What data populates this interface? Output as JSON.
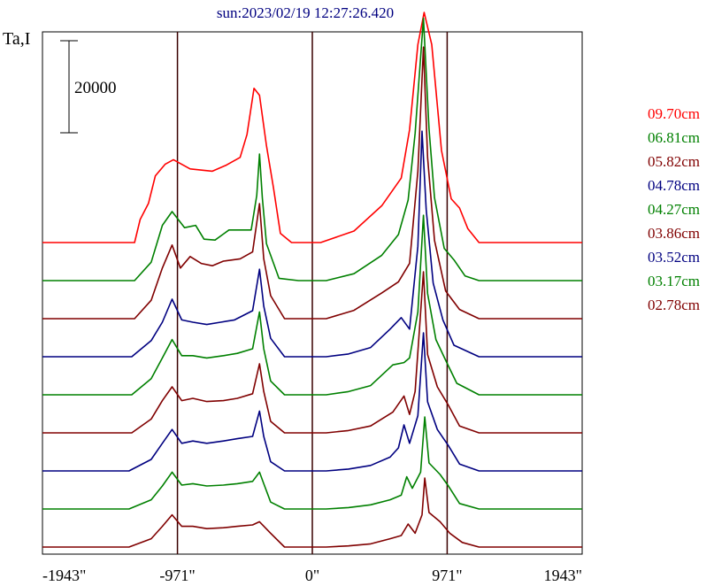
{
  "chart_data": {
    "type": "line",
    "title": "sun:2023/02/19 12:27:26.420",
    "ylabel": "Ta,I",
    "scale_bar_label": "20000",
    "xlim": [
      -1943,
      1943
    ],
    "x_ticks": [
      -1943,
      -971,
      0,
      971,
      1943
    ],
    "x_tick_labels": [
      "-1943\"",
      "-971\"",
      "0\"",
      "971\"",
      "1943\""
    ],
    "vertical_lines": [
      -971,
      0,
      971
    ],
    "series": [
      {
        "name": "09.70cm",
        "color": "#ff0000",
        "peaks": [
          [
            -1820,
            0
          ],
          [
            -1280,
            0
          ],
          [
            -1240,
            5000
          ],
          [
            -1180,
            8500
          ],
          [
            -1130,
            14500
          ],
          [
            -1060,
            17000
          ],
          [
            -1000,
            18000
          ],
          [
            -880,
            16000
          ],
          [
            -720,
            15500
          ],
          [
            -620,
            16800
          ],
          [
            -520,
            18500
          ],
          [
            -470,
            23500
          ],
          [
            -420,
            33500
          ],
          [
            -380,
            32000
          ],
          [
            -330,
            21000
          ],
          [
            -280,
            12000
          ],
          [
            -230,
            2000
          ],
          [
            -150,
            0
          ],
          [
            60,
            0
          ],
          [
            300,
            2500
          ],
          [
            500,
            8000
          ],
          [
            640,
            14000
          ],
          [
            700,
            24500
          ],
          [
            760,
            43000
          ],
          [
            805,
            50000
          ],
          [
            860,
            43000
          ],
          [
            930,
            20000
          ],
          [
            1000,
            9500
          ],
          [
            1060,
            7500
          ],
          [
            1120,
            3000
          ],
          [
            1200,
            0
          ],
          [
            1943,
            0
          ]
        ]
      },
      {
        "name": "06.81cm",
        "color": "#008000",
        "peaks": [
          [
            -1820,
            0
          ],
          [
            -1280,
            0
          ],
          [
            -1160,
            4000
          ],
          [
            -1080,
            12000
          ],
          [
            -1010,
            15000
          ],
          [
            -920,
            11500
          ],
          [
            -840,
            12000
          ],
          [
            -780,
            9000
          ],
          [
            -700,
            8800
          ],
          [
            -600,
            11000
          ],
          [
            -440,
            11000
          ],
          [
            -400,
            18500
          ],
          [
            -380,
            27500
          ],
          [
            -360,
            18000
          ],
          [
            -330,
            8000
          ],
          [
            -240,
            500
          ],
          [
            -100,
            0
          ],
          [
            100,
            0
          ],
          [
            300,
            1500
          ],
          [
            500,
            5500
          ],
          [
            620,
            10000
          ],
          [
            690,
            17500
          ],
          [
            740,
            32000
          ],
          [
            800,
            57000
          ],
          [
            840,
            33000
          ],
          [
            880,
            18000
          ],
          [
            950,
            7000
          ],
          [
            1020,
            4500
          ],
          [
            1100,
            1000
          ],
          [
            1200,
            0
          ],
          [
            1943,
            0
          ]
        ]
      },
      {
        "name": "05.82cm",
        "color": "#800000",
        "peaks": [
          [
            -1820,
            0
          ],
          [
            -1280,
            0
          ],
          [
            -1160,
            4000
          ],
          [
            -1080,
            11000
          ],
          [
            -1010,
            16000
          ],
          [
            -950,
            11000
          ],
          [
            -880,
            13500
          ],
          [
            -800,
            12000
          ],
          [
            -720,
            11500
          ],
          [
            -640,
            12500
          ],
          [
            -520,
            13000
          ],
          [
            -430,
            14500
          ],
          [
            -380,
            25000
          ],
          [
            -350,
            13000
          ],
          [
            -300,
            5000
          ],
          [
            -200,
            0
          ],
          [
            100,
            0
          ],
          [
            300,
            1800
          ],
          [
            500,
            5600
          ],
          [
            620,
            8000
          ],
          [
            700,
            12000
          ],
          [
            760,
            32000
          ],
          [
            800,
            59000
          ],
          [
            830,
            35000
          ],
          [
            880,
            17000
          ],
          [
            960,
            6000
          ],
          [
            1060,
            2000
          ],
          [
            1200,
            0
          ],
          [
            1943,
            0
          ]
        ]
      },
      {
        "name": "04.78cm",
        "color": "#000080",
        "peaks": [
          [
            -1820,
            0
          ],
          [
            -1300,
            0
          ],
          [
            -1160,
            3500
          ],
          [
            -1080,
            7500
          ],
          [
            -1010,
            12500
          ],
          [
            -940,
            8000
          ],
          [
            -860,
            7500
          ],
          [
            -760,
            7000
          ],
          [
            -660,
            7500
          ],
          [
            -560,
            8000
          ],
          [
            -430,
            10000
          ],
          [
            -380,
            19000
          ],
          [
            -350,
            11000
          ],
          [
            -300,
            4000
          ],
          [
            -200,
            0
          ],
          [
            100,
            0
          ],
          [
            260,
            600
          ],
          [
            420,
            2000
          ],
          [
            560,
            6000
          ],
          [
            640,
            8500
          ],
          [
            700,
            6000
          ],
          [
            760,
            24000
          ],
          [
            790,
            49000
          ],
          [
            820,
            32000
          ],
          [
            870,
            16000
          ],
          [
            940,
            8000
          ],
          [
            1020,
            2500
          ],
          [
            1200,
            0
          ],
          [
            1943,
            0
          ]
        ]
      },
      {
        "name": "04.27cm",
        "color": "#008000",
        "peaks": [
          [
            -1820,
            0
          ],
          [
            -1300,
            0
          ],
          [
            -1160,
            3500
          ],
          [
            -1080,
            8000
          ],
          [
            -1010,
            12000
          ],
          [
            -940,
            8500
          ],
          [
            -860,
            8500
          ],
          [
            -760,
            8000
          ],
          [
            -640,
            8500
          ],
          [
            -540,
            9000
          ],
          [
            -430,
            10000
          ],
          [
            -380,
            18000
          ],
          [
            -350,
            10000
          ],
          [
            -300,
            3000
          ],
          [
            -200,
            0
          ],
          [
            100,
            0
          ],
          [
            260,
            700
          ],
          [
            420,
            2000
          ],
          [
            580,
            6500
          ],
          [
            660,
            7000
          ],
          [
            700,
            8000
          ],
          [
            760,
            18000
          ],
          [
            800,
            39000
          ],
          [
            830,
            22000
          ],
          [
            890,
            12000
          ],
          [
            960,
            7500
          ],
          [
            1040,
            2500
          ],
          [
            1200,
            0
          ],
          [
            1943,
            0
          ]
        ]
      },
      {
        "name": "03.86cm",
        "color": "#800000",
        "peaks": [
          [
            -1820,
            0
          ],
          [
            -1300,
            0
          ],
          [
            -1160,
            3000
          ],
          [
            -1080,
            7000
          ],
          [
            -1010,
            10000
          ],
          [
            -940,
            7000
          ],
          [
            -860,
            7500
          ],
          [
            -760,
            6800
          ],
          [
            -640,
            7000
          ],
          [
            -540,
            7500
          ],
          [
            -430,
            8500
          ],
          [
            -380,
            15000
          ],
          [
            -350,
            9000
          ],
          [
            -300,
            2500
          ],
          [
            -200,
            0
          ],
          [
            100,
            0
          ],
          [
            260,
            500
          ],
          [
            420,
            1500
          ],
          [
            580,
            4500
          ],
          [
            660,
            8000
          ],
          [
            700,
            4000
          ],
          [
            740,
            9000
          ],
          [
            800,
            35000
          ],
          [
            830,
            17000
          ],
          [
            900,
            10000
          ],
          [
            980,
            6000
          ],
          [
            1060,
            1500
          ],
          [
            1200,
            0
          ],
          [
            1943,
            0
          ]
        ]
      },
      {
        "name": "03.52cm",
        "color": "#000080",
        "peaks": [
          [
            -1820,
            0
          ],
          [
            -1320,
            0
          ],
          [
            -1160,
            2500
          ],
          [
            -1080,
            6000
          ],
          [
            -1010,
            9000
          ],
          [
            -940,
            6000
          ],
          [
            -860,
            6500
          ],
          [
            -760,
            6000
          ],
          [
            -640,
            6500
          ],
          [
            -540,
            7000
          ],
          [
            -430,
            7500
          ],
          [
            -380,
            13000
          ],
          [
            -350,
            7500
          ],
          [
            -300,
            2000
          ],
          [
            -200,
            0
          ],
          [
            100,
            0
          ],
          [
            260,
            400
          ],
          [
            420,
            1200
          ],
          [
            560,
            3000
          ],
          [
            620,
            5000
          ],
          [
            660,
            10000
          ],
          [
            700,
            6000
          ],
          [
            760,
            12000
          ],
          [
            800,
            30000
          ],
          [
            830,
            15000
          ],
          [
            900,
            9000
          ],
          [
            980,
            5500
          ],
          [
            1060,
            1500
          ],
          [
            1200,
            0
          ],
          [
            1943,
            0
          ]
        ]
      },
      {
        "name": "03.17cm",
        "color": "#008000",
        "peaks": [
          [
            -1820,
            0
          ],
          [
            -1320,
            0
          ],
          [
            -1160,
            2000
          ],
          [
            -1080,
            5000
          ],
          [
            -1010,
            8000
          ],
          [
            -940,
            5200
          ],
          [
            -860,
            5500
          ],
          [
            -760,
            5000
          ],
          [
            -640,
            5200
          ],
          [
            -540,
            5500
          ],
          [
            -430,
            6000
          ],
          [
            -380,
            8000
          ],
          [
            -350,
            5500
          ],
          [
            -300,
            1500
          ],
          [
            -200,
            0
          ],
          [
            100,
            0
          ],
          [
            260,
            300
          ],
          [
            420,
            900
          ],
          [
            560,
            2000
          ],
          [
            640,
            3000
          ],
          [
            680,
            7000
          ],
          [
            720,
            4500
          ],
          [
            780,
            8000
          ],
          [
            810,
            20000
          ],
          [
            840,
            10000
          ],
          [
            920,
            7500
          ],
          [
            980,
            5000
          ],
          [
            1060,
            1200
          ],
          [
            1200,
            0
          ],
          [
            1943,
            0
          ]
        ]
      },
      {
        "name": "02.78cm",
        "color": "#800000",
        "peaks": [
          [
            -1820,
            0
          ],
          [
            -1320,
            0
          ],
          [
            -1160,
            1800
          ],
          [
            -1080,
            4500
          ],
          [
            -1010,
            7000
          ],
          [
            -940,
            4500
          ],
          [
            -860,
            4500
          ],
          [
            -760,
            4000
          ],
          [
            -640,
            4200
          ],
          [
            -540,
            4500
          ],
          [
            -430,
            4800
          ],
          [
            -380,
            5500
          ],
          [
            -300,
            3000
          ],
          [
            -200,
            0
          ],
          [
            100,
            0
          ],
          [
            260,
            250
          ],
          [
            420,
            700
          ],
          [
            560,
            1800
          ],
          [
            640,
            2500
          ],
          [
            690,
            5000
          ],
          [
            740,
            3000
          ],
          [
            790,
            7000
          ],
          [
            810,
            15000
          ],
          [
            840,
            7500
          ],
          [
            920,
            5500
          ],
          [
            990,
            3000
          ],
          [
            1080,
            1000
          ],
          [
            1200,
            0
          ],
          [
            1943,
            0
          ]
        ]
      }
    ]
  }
}
